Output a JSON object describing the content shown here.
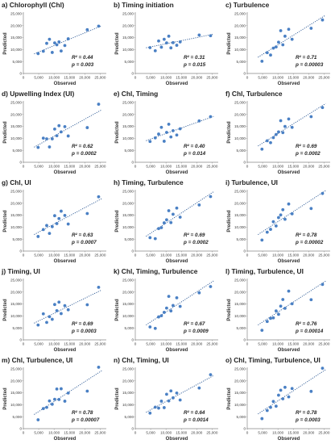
{
  "figure": {
    "axis_ticks_x": [
      "0",
      "5,000",
      "10,000",
      "15,000",
      "20,000",
      "25,000"
    ],
    "axis_ticks_y": [
      "0",
      "5,000",
      "10,000",
      "15,000",
      "20,000",
      "25,000"
    ],
    "colors": {
      "points": "#4a80c4",
      "trendline": "#2f5b96",
      "axes": "#888888",
      "text": "#1f1f1f"
    }
  },
  "chart_data": [
    {
      "type": "scatter",
      "title": "a) Chlorophyll (Chl)",
      "xlabel": "Observed",
      "ylabel": "Predicted",
      "r2": "R² = 0.44",
      "p": "p = 0.003",
      "xlim": [
        0,
        27000
      ],
      "ylim": [
        0,
        25000
      ],
      "trendline": "dotted linear",
      "x": [
        4800,
        6500,
        7600,
        8500,
        9400,
        10200,
        10900,
        11600,
        12300,
        13500,
        14600,
        20800,
        24500
      ],
      "y": [
        8300,
        9300,
        12600,
        14300,
        8800,
        12800,
        12000,
        13200,
        9400,
        11700,
        14500,
        18300,
        19800
      ]
    },
    {
      "type": "scatter",
      "title": "b) Timing initiation",
      "xlabel": "Observed",
      "ylabel": "Predicted",
      "r2": "R² = 0.31",
      "p": "p = 0.015",
      "xlim": [
        0,
        27000
      ],
      "ylim": [
        0,
        25000
      ],
      "trendline": "dotted linear",
      "x": [
        4800,
        6500,
        7600,
        8500,
        9400,
        10200,
        10900,
        11600,
        12300,
        13500,
        14600,
        20800,
        24500
      ],
      "y": [
        10800,
        9500,
        13600,
        11000,
        14300,
        12800,
        15600,
        10700,
        12900,
        11800,
        13200,
        16100,
        15800
      ]
    },
    {
      "type": "scatter",
      "title": "c) Turbulence",
      "xlabel": "Observed",
      "ylabel": "Predicted",
      "r2": "R² = 0.71",
      "p": "p = 0.00003",
      "xlim": [
        0,
        27000
      ],
      "ylim": [
        0,
        25000
      ],
      "trendline": "dotted linear",
      "x": [
        4800,
        6500,
        7600,
        8500,
        9400,
        10200,
        10900,
        11600,
        12300,
        13500,
        14600,
        20800,
        24500
      ],
      "y": [
        5100,
        8700,
        7700,
        10600,
        11100,
        13100,
        17900,
        12000,
        15600,
        18500,
        14300,
        18900,
        22400
      ]
    },
    {
      "type": "scatter",
      "title": "d) Upwelling Index (UI)",
      "xlabel": "Observed",
      "ylabel": "Predicted",
      "r2": "R² = 0.62",
      "p": "p = 0.0002",
      "xlim": [
        0,
        27000
      ],
      "ylim": [
        0,
        25000
      ],
      "trendline": "dotted linear",
      "x": [
        4800,
        6500,
        7600,
        8500,
        9400,
        10200,
        10900,
        11600,
        12300,
        13500,
        14600,
        20800,
        24500
      ],
      "y": [
        6200,
        10100,
        9800,
        6400,
        9800,
        13900,
        11100,
        15300,
        12700,
        14900,
        11000,
        14500,
        24300
      ]
    },
    {
      "type": "scatter",
      "title": "e) Chl, Timing",
      "xlabel": "Observed",
      "ylabel": "Predicted",
      "r2": "R² = 0.40",
      "p": "p = 0.014",
      "xlim": [
        0,
        27000
      ],
      "ylim": [
        0,
        25000
      ],
      "trendline": "dotted linear",
      "x": [
        4800,
        6500,
        7600,
        8500,
        9400,
        10200,
        10900,
        11600,
        12300,
        13500,
        14600,
        20800,
        24500
      ],
      "y": [
        8700,
        10200,
        11800,
        14600,
        8800,
        12500,
        15900,
        10600,
        13200,
        11400,
        14000,
        17300,
        19100
      ]
    },
    {
      "type": "scatter",
      "title": "f) Chl, Turbulence",
      "xlabel": "Observed",
      "ylabel": "Predicted",
      "r2": "R² = 0.69",
      "p": "p = 0.0002",
      "xlim": [
        0,
        27000
      ],
      "ylim": [
        0,
        25000
      ],
      "trendline": "dotted linear",
      "x": [
        4800,
        6500,
        7600,
        8500,
        9400,
        10200,
        10900,
        11600,
        12300,
        13500,
        14600,
        20800,
        24500
      ],
      "y": [
        5500,
        9000,
        8200,
        10300,
        11600,
        12700,
        17400,
        12400,
        15000,
        18100,
        14600,
        19100,
        22900
      ]
    },
    {
      "type": "scatter",
      "title": "g) Chl, UI",
      "xlabel": "Observed",
      "ylabel": "Predicted",
      "r2": "R² = 0.63",
      "p": "p = 0.0007",
      "xlim": [
        0,
        27000
      ],
      "ylim": [
        0,
        25000
      ],
      "trendline": "dotted linear",
      "x": [
        4800,
        6500,
        7600,
        8500,
        9400,
        10200,
        10900,
        11600,
        12300,
        13500,
        14600,
        20800,
        24500
      ],
      "y": [
        6100,
        9000,
        10700,
        7400,
        10200,
        14800,
        11500,
        13600,
        16700,
        14900,
        11300,
        15700,
        22700
      ]
    },
    {
      "type": "scatter",
      "title": "h) Timing, Turbulence",
      "xlabel": "Observed",
      "ylabel": "Predicted",
      "r2": "R² = 0.69",
      "p": "p = 0.0002",
      "xlim": [
        0,
        27000
      ],
      "ylim": [
        0,
        25000
      ],
      "trendline": "dotted linear",
      "x": [
        4800,
        6500,
        7600,
        8500,
        9400,
        10200,
        10900,
        11600,
        12300,
        13500,
        14600,
        20800,
        24500
      ],
      "y": [
        5600,
        5200,
        9400,
        9800,
        11800,
        13100,
        16900,
        11900,
        15400,
        18000,
        14200,
        19300,
        22800
      ]
    },
    {
      "type": "scatter",
      "title": "i) Turbulence, UI",
      "xlabel": "Observed",
      "ylabel": "Predicted",
      "r2": "R² = 0.78",
      "p": "p = 0.00002",
      "xlim": [
        0,
        27000
      ],
      "ylim": [
        0,
        25000
      ],
      "trendline": "dotted linear",
      "x": [
        4800,
        6500,
        7600,
        8500,
        9400,
        10200,
        10900,
        11600,
        12300,
        13500,
        14600,
        20800,
        24500
      ],
      "y": [
        4600,
        7900,
        9100,
        12300,
        10500,
        14000,
        15100,
        17300,
        13300,
        19700,
        15600,
        17800,
        24100
      ]
    },
    {
      "type": "scatter",
      "title": "j) Timing, UI",
      "xlabel": "Observed",
      "ylabel": "Predicted",
      "r2": "R² = 0.69",
      "p": "p = 0.0003",
      "xlim": [
        0,
        27000
      ],
      "ylim": [
        0,
        25000
      ],
      "trendline": "dotted linear",
      "x": [
        4800,
        6500,
        7600,
        8500,
        9400,
        10200,
        10900,
        11600,
        12300,
        13500,
        14600,
        20800,
        24500
      ],
      "y": [
        6200,
        10900,
        7300,
        9700,
        8600,
        14800,
        12200,
        15800,
        11000,
        14300,
        12600,
        14700,
        22000
      ]
    },
    {
      "type": "scatter",
      "title": "k) Chl, Timing, Turbulence",
      "xlabel": "Observed",
      "ylabel": "Predicted",
      "r2": "R² = 0.67",
      "p": "p = 0.0009",
      "xlim": [
        0,
        27000
      ],
      "ylim": [
        0,
        25000
      ],
      "trendline": "dotted linear",
      "x": [
        4800,
        6500,
        7600,
        8500,
        9400,
        10200,
        10900,
        11600,
        12300,
        13500,
        14600,
        20800,
        24500
      ],
      "y": [
        5400,
        4800,
        9600,
        10100,
        11500,
        13300,
        18200,
        12100,
        14400,
        17600,
        14000,
        19700,
        22300
      ]
    },
    {
      "type": "scatter",
      "title": "l) Timing, Turbulence, UI",
      "xlabel": "Observed",
      "ylabel": "Predicted",
      "r2": "R² = 0.76",
      "p": "p = 0.00014",
      "xlim": [
        0,
        27000
      ],
      "ylim": [
        0,
        25000
      ],
      "trendline": "dotted linear",
      "x": [
        4800,
        6500,
        7600,
        8500,
        9400,
        10200,
        10900,
        11600,
        12300,
        13500,
        14600,
        20800,
        24500
      ],
      "y": [
        4000,
        7700,
        9000,
        9200,
        12100,
        10700,
        14100,
        16900,
        13200,
        20400,
        15100,
        16800,
        23200
      ]
    },
    {
      "type": "scatter",
      "title": "m) Chl, Turbulence, UI",
      "xlabel": "Observed",
      "ylabel": "Predicted",
      "r2": "R² = 0.78",
      "p": "p = 0.00007",
      "xlim": [
        0,
        27000
      ],
      "ylim": [
        0,
        25000
      ],
      "trendline": "dotted linear",
      "x": [
        4800,
        6500,
        7600,
        8500,
        9400,
        10200,
        10900,
        11600,
        12300,
        13500,
        14600,
        20800,
        24500
      ],
      "y": [
        3700,
        8400,
        8900,
        11600,
        10200,
        12300,
        16600,
        12200,
        16700,
        11500,
        14900,
        15700,
        25700
      ]
    },
    {
      "type": "scatter",
      "title": "n) Chl, Timing, UI",
      "xlabel": "Observed",
      "ylabel": "Predicted",
      "r2": "R² = 0.64",
      "p": "p = 0.0014",
      "xlim": [
        0,
        27000
      ],
      "ylim": [
        0,
        25000
      ],
      "trendline": "dotted linear",
      "x": [
        4800,
        6500,
        7600,
        8500,
        9400,
        10200,
        10900,
        11600,
        12300,
        13500,
        14600,
        20800,
        24500
      ],
      "y": [
        6500,
        9000,
        8600,
        11500,
        8800,
        14400,
        11600,
        15800,
        12900,
        14900,
        12000,
        17000,
        22600
      ]
    },
    {
      "type": "scatter",
      "title": "o) Chl, Timing, Turbulence, UI",
      "xlabel": "Observed",
      "ylabel": "Predicted",
      "r2": "R² = 0.78",
      "p": "p = 0.0003",
      "xlim": [
        0,
        27000
      ],
      "ylim": [
        0,
        25000
      ],
      "trendline": "dotted linear",
      "x": [
        4800,
        6500,
        7600,
        8500,
        9400,
        10200,
        10900,
        11600,
        12300,
        13500,
        14600,
        20800,
        24500
      ],
      "y": [
        4200,
        7600,
        8900,
        11400,
        9400,
        14000,
        16100,
        12500,
        17300,
        13300,
        16800,
        15600,
        25300
      ]
    }
  ]
}
